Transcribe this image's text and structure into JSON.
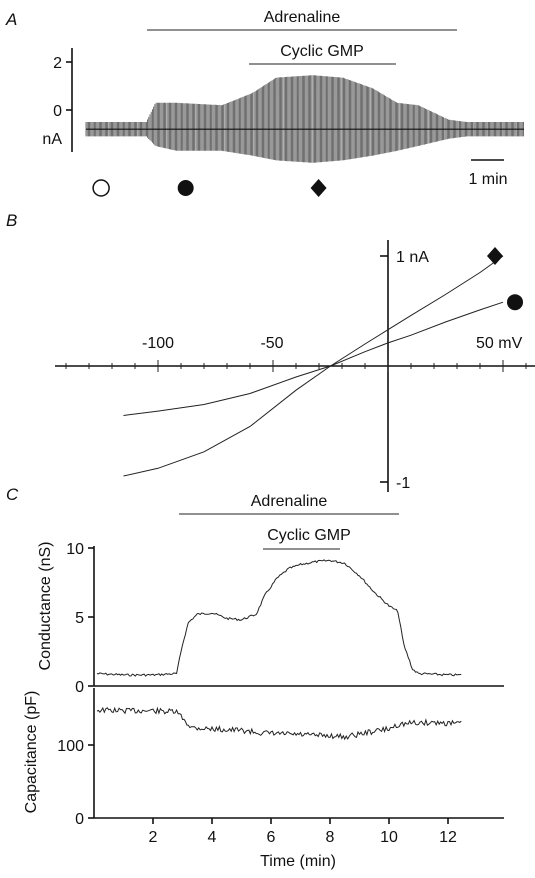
{
  "chart_data": [
    {
      "panel": "A",
      "type": "line",
      "title": "",
      "ylabel": "nA",
      "y_ticks": [
        "2",
        "0"
      ],
      "bars": [
        {
          "label": "Adrenaline",
          "start_min": 2.0,
          "end_min": 12.0
        },
        {
          "label": "Cyclic GMP",
          "start_min": 5.7,
          "end_min": 10.5
        }
      ],
      "scale_bar": "1 min",
      "holding_current_nA": -0.8,
      "envelope": {
        "x_min": [
          0,
          2,
          2.3,
          3,
          4.5,
          5.5,
          6.3,
          7.5,
          8.5,
          9.5,
          10.3,
          11.0,
          12.0,
          12.6,
          14.5
        ],
        "upper_nA": [
          -0.5,
          -0.5,
          0.3,
          0.3,
          0.2,
          0.7,
          1.35,
          1.45,
          1.35,
          0.9,
          0.3,
          0.2,
          -0.4,
          -0.5,
          -0.5
        ],
        "lower_nA": [
          -1.1,
          -1.1,
          -1.5,
          -1.7,
          -1.7,
          -1.9,
          -2.1,
          -2.2,
          -2.1,
          -1.9,
          -1.7,
          -1.5,
          -1.2,
          -1.1,
          -1.1
        ]
      },
      "markers": [
        {
          "symbol": "circle-open",
          "time_min": 0.5
        },
        {
          "symbol": "circle-filled",
          "time_min": 3.3
        },
        {
          "symbol": "diamond",
          "time_min": 7.7
        }
      ]
    },
    {
      "panel": "B",
      "type": "line",
      "title": "",
      "x_ticks": [
        "-100",
        "-50",
        "50 mV"
      ],
      "x_tick_values": [
        -100,
        -50,
        50
      ],
      "y_ticks": [
        "1 nA",
        "-1"
      ],
      "y_tick_values": [
        1,
        -1
      ],
      "xlim": [
        -115,
        50
      ],
      "ylim": [
        -1.1,
        1.1
      ],
      "series": [
        {
          "marker": "diamond",
          "x": [
            -115,
            -100,
            -80,
            -60,
            -40,
            -25,
            -10,
            0,
            10,
            25,
            40,
            50
          ],
          "y": [
            -1.0,
            -0.93,
            -0.78,
            -0.55,
            -0.22,
            0.0,
            0.2,
            0.33,
            0.46,
            0.65,
            0.85,
            1.0
          ]
        },
        {
          "marker": "circle-filled",
          "x": [
            -115,
            -100,
            -80,
            -60,
            -40,
            -25,
            -10,
            0,
            10,
            25,
            40,
            50
          ],
          "y": [
            -0.45,
            -0.41,
            -0.35,
            -0.25,
            -0.1,
            0.0,
            0.13,
            0.21,
            0.28,
            0.4,
            0.51,
            0.58
          ]
        }
      ]
    },
    {
      "panel": "C",
      "type": "line",
      "title": "",
      "xlabel": "Time (min)",
      "x_ticks": [
        "2",
        "4",
        "6",
        "8",
        "10",
        "12"
      ],
      "x_tick_values": [
        2,
        4,
        6,
        8,
        10,
        12
      ],
      "xlim": [
        0,
        13.8
      ],
      "bars": [
        {
          "label": "Adrenaline",
          "start_min": 2.8,
          "end_min": 10.6
        },
        {
          "label": "Cyclic GMP",
          "start_min": 5.9,
          "end_min": 8.5
        }
      ],
      "subplots": [
        {
          "ylabel": "Conductance (nS)",
          "y_ticks": [
            "10",
            "5",
            "0"
          ],
          "y_tick_values": [
            10,
            5,
            0
          ],
          "ylim": [
            0,
            10
          ],
          "x": [
            0.1,
            1.0,
            2.0,
            2.8,
            3.0,
            3.2,
            3.5,
            4.0,
            4.5,
            5.0,
            5.5,
            5.8,
            6.2,
            6.6,
            7.0,
            7.5,
            8.0,
            8.5,
            9.0,
            9.5,
            10.0,
            10.3,
            10.5,
            10.8,
            11.0,
            12.0,
            12.5
          ],
          "y": [
            0.9,
            0.8,
            0.8,
            0.9,
            3.0,
            4.6,
            5.2,
            5.3,
            4.9,
            4.8,
            5.2,
            6.6,
            7.8,
            8.5,
            8.8,
            9.0,
            9.1,
            8.9,
            8.0,
            6.8,
            5.8,
            5.4,
            3.0,
            1.2,
            0.9,
            0.8,
            0.8
          ]
        },
        {
          "ylabel": "Capacitance (pF)",
          "y_ticks": [
            "100",
            "0"
          ],
          "y_tick_values": [
            100,
            0
          ],
          "ylim": [
            0,
            152
          ],
          "x": [
            0.1,
            1.0,
            2.0,
            2.8,
            3.0,
            3.3,
            4.0,
            5.0,
            5.8,
            6.5,
            7.0,
            7.5,
            8.0,
            8.5,
            9.0,
            9.5,
            10.0,
            10.3,
            10.8,
            11.5,
            12.0,
            12.5
          ],
          "y": [
            148,
            147,
            147,
            145,
            137,
            124,
            122,
            120,
            116,
            115,
            114,
            113,
            113,
            111,
            115,
            119,
            122,
            128,
            130,
            131,
            130,
            129
          ]
        }
      ]
    }
  ]
}
